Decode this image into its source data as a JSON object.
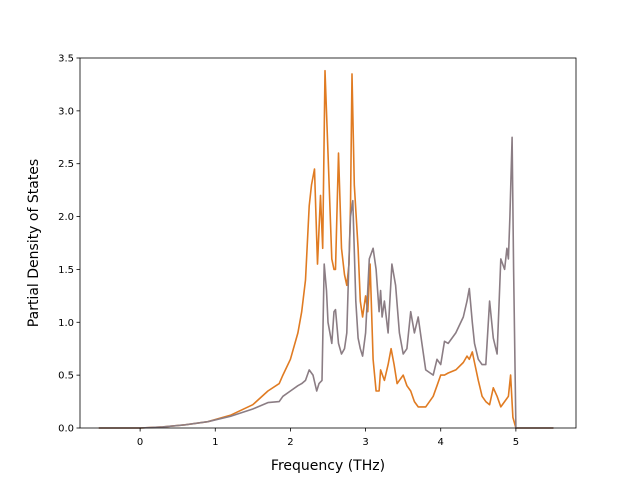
{
  "chart_data": {
    "type": "line",
    "title": "",
    "xlabel": "Frequency (THz)",
    "ylabel": "Partial Density of States",
    "xlim": [
      -0.8,
      5.8
    ],
    "ylim": [
      0,
      3.5
    ],
    "xticks": [
      0,
      1,
      2,
      3,
      4,
      5
    ],
    "yticks": [
      0.0,
      0.5,
      1.0,
      1.5,
      2.0,
      2.5,
      3.0,
      3.5
    ],
    "xtick_labels": [
      "0",
      "1",
      "2",
      "3",
      "4",
      "5"
    ],
    "ytick_labels": [
      "0.0",
      "0.5",
      "1.0",
      "1.5",
      "2.0",
      "2.5",
      "3.0",
      "3.5"
    ],
    "grid": false,
    "legend": "none",
    "series": [
      {
        "color": "#e07b22",
        "x": [
          -0.55,
          0.0,
          0.3,
          0.6,
          0.9,
          1.2,
          1.5,
          1.7,
          1.85,
          1.9,
          2.0,
          2.1,
          2.15,
          2.2,
          2.25,
          2.28,
          2.32,
          2.36,
          2.4,
          2.43,
          2.46,
          2.5,
          2.55,
          2.58,
          2.6,
          2.64,
          2.68,
          2.72,
          2.75,
          2.78,
          2.8,
          2.82,
          2.85,
          2.9,
          2.93,
          2.96,
          3.0,
          3.03,
          3.06,
          3.1,
          3.14,
          3.18,
          3.2,
          3.25,
          3.3,
          3.34,
          3.38,
          3.42,
          3.5,
          3.55,
          3.6,
          3.65,
          3.7,
          3.8,
          3.9,
          3.95,
          4.0,
          4.05,
          4.1,
          4.2,
          4.3,
          4.35,
          4.38,
          4.42,
          4.45,
          4.5,
          4.55,
          4.6,
          4.65,
          4.7,
          4.75,
          4.8,
          4.85,
          4.9,
          4.93,
          4.96,
          5.0,
          5.5
        ],
        "y": [
          0.0,
          0.0,
          0.01,
          0.03,
          0.06,
          0.12,
          0.22,
          0.35,
          0.42,
          0.5,
          0.65,
          0.9,
          1.1,
          1.4,
          2.1,
          2.3,
          2.45,
          1.55,
          2.2,
          1.7,
          3.38,
          2.6,
          1.6,
          1.5,
          1.5,
          2.6,
          1.7,
          1.45,
          1.35,
          1.55,
          2.1,
          3.35,
          2.3,
          1.7,
          1.2,
          1.05,
          1.25,
          1.1,
          1.55,
          0.65,
          0.35,
          0.35,
          0.55,
          0.45,
          0.6,
          0.75,
          0.6,
          0.42,
          0.5,
          0.4,
          0.35,
          0.25,
          0.2,
          0.2,
          0.3,
          0.4,
          0.5,
          0.5,
          0.52,
          0.55,
          0.62,
          0.68,
          0.65,
          0.72,
          0.62,
          0.45,
          0.3,
          0.25,
          0.22,
          0.38,
          0.3,
          0.2,
          0.25,
          0.3,
          0.5,
          0.1,
          0.0,
          0.0
        ]
      },
      {
        "color": "#8b7d84",
        "x": [
          -0.55,
          0.0,
          0.3,
          0.6,
          0.9,
          1.2,
          1.5,
          1.7,
          1.85,
          1.9,
          2.0,
          2.1,
          2.15,
          2.2,
          2.25,
          2.3,
          2.35,
          2.38,
          2.42,
          2.45,
          2.48,
          2.5,
          2.55,
          2.58,
          2.6,
          2.64,
          2.68,
          2.72,
          2.75,
          2.78,
          2.8,
          2.83,
          2.87,
          2.9,
          2.93,
          2.96,
          3.0,
          3.05,
          3.1,
          3.14,
          3.18,
          3.2,
          3.22,
          3.25,
          3.3,
          3.35,
          3.4,
          3.45,
          3.5,
          3.55,
          3.6,
          3.65,
          3.7,
          3.75,
          3.8,
          3.9,
          3.95,
          4.0,
          4.05,
          4.1,
          4.2,
          4.3,
          4.35,
          4.38,
          4.42,
          4.45,
          4.5,
          4.55,
          4.6,
          4.65,
          4.7,
          4.75,
          4.8,
          4.85,
          4.88,
          4.9,
          4.92,
          4.95,
          4.97,
          5.0,
          5.5
        ],
        "y": [
          0.0,
          0.0,
          0.01,
          0.03,
          0.06,
          0.11,
          0.18,
          0.24,
          0.25,
          0.3,
          0.35,
          0.4,
          0.42,
          0.45,
          0.55,
          0.5,
          0.35,
          0.42,
          0.45,
          1.55,
          1.3,
          1.0,
          0.8,
          1.1,
          1.12,
          0.8,
          0.7,
          0.75,
          0.9,
          1.6,
          2.0,
          2.15,
          1.2,
          0.85,
          0.75,
          0.68,
          0.9,
          1.6,
          1.7,
          1.5,
          1.1,
          1.3,
          1.05,
          1.2,
          0.9,
          1.55,
          1.35,
          0.9,
          0.7,
          0.75,
          1.1,
          0.9,
          1.05,
          0.8,
          0.55,
          0.5,
          0.65,
          0.6,
          0.82,
          0.8,
          0.9,
          1.05,
          1.2,
          1.32,
          1.0,
          0.8,
          0.65,
          0.6,
          0.6,
          1.2,
          0.85,
          0.7,
          1.6,
          1.5,
          1.7,
          1.6,
          2.0,
          2.75,
          1.5,
          0.0,
          0.0
        ]
      }
    ]
  }
}
